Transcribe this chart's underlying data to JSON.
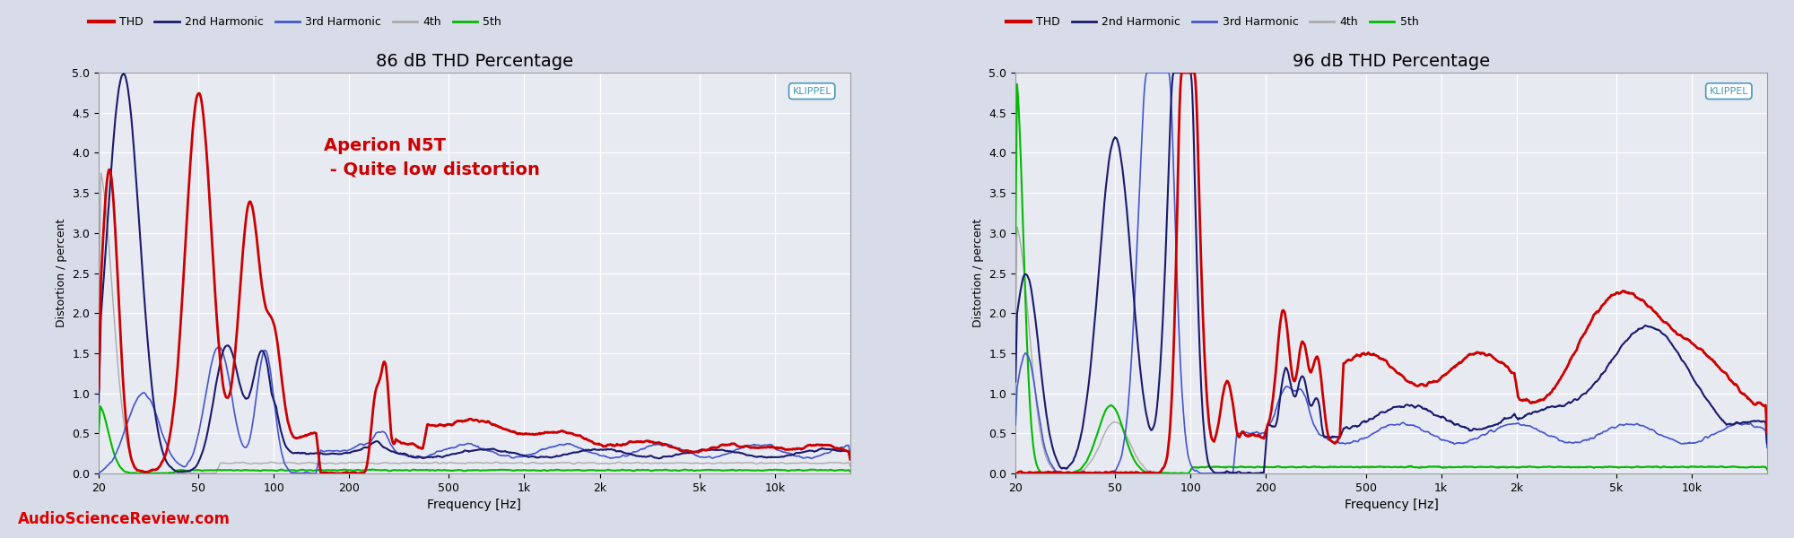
{
  "title_left": "86 dB THD Percentage",
  "title_right": "96 dB THD Percentage",
  "ylabel": "Distortion / percent",
  "xlabel": "Frequency [Hz]",
  "ylim": [
    0,
    5.0
  ],
  "yticks": [
    0,
    0.5,
    1.0,
    1.5,
    2.0,
    2.5,
    3.0,
    3.5,
    4.0,
    4.5,
    5.0
  ],
  "xmin": 20,
  "xmax": 20000,
  "annotation_left": "Aperion N5T\n - Quite low distortion",
  "bg_color": "#d8dce8",
  "plot_bg_color": "#e8eaf2",
  "grid_color": "#ffffff",
  "thd_color": "#cc0000",
  "h2_color": "#1a1a6e",
  "h3_color": "#4455cc",
  "h4_color": "#aaaaaa",
  "h5_color": "#00bb00",
  "klippel_text_color": "#4499bb",
  "klippel_border_color": "#4499bb",
  "asr_color": "#dd0000",
  "title_fontsize": 14,
  "legend_fontsize": 9,
  "tick_fontsize": 9,
  "ylabel_fontsize": 9,
  "xlabel_fontsize": 10,
  "annotation_fontsize": 14,
  "legend_items": [
    "THD",
    "2nd Harmonic",
    "3rd Harmonic",
    "4th",
    "5th"
  ],
  "freq_ticks": [
    20,
    50,
    100,
    200,
    500,
    1000,
    2000,
    5000,
    10000
  ],
  "freq_labels": [
    "20",
    "50",
    "100",
    "200",
    "500",
    "1k",
    "2k",
    "5k",
    "10k"
  ]
}
